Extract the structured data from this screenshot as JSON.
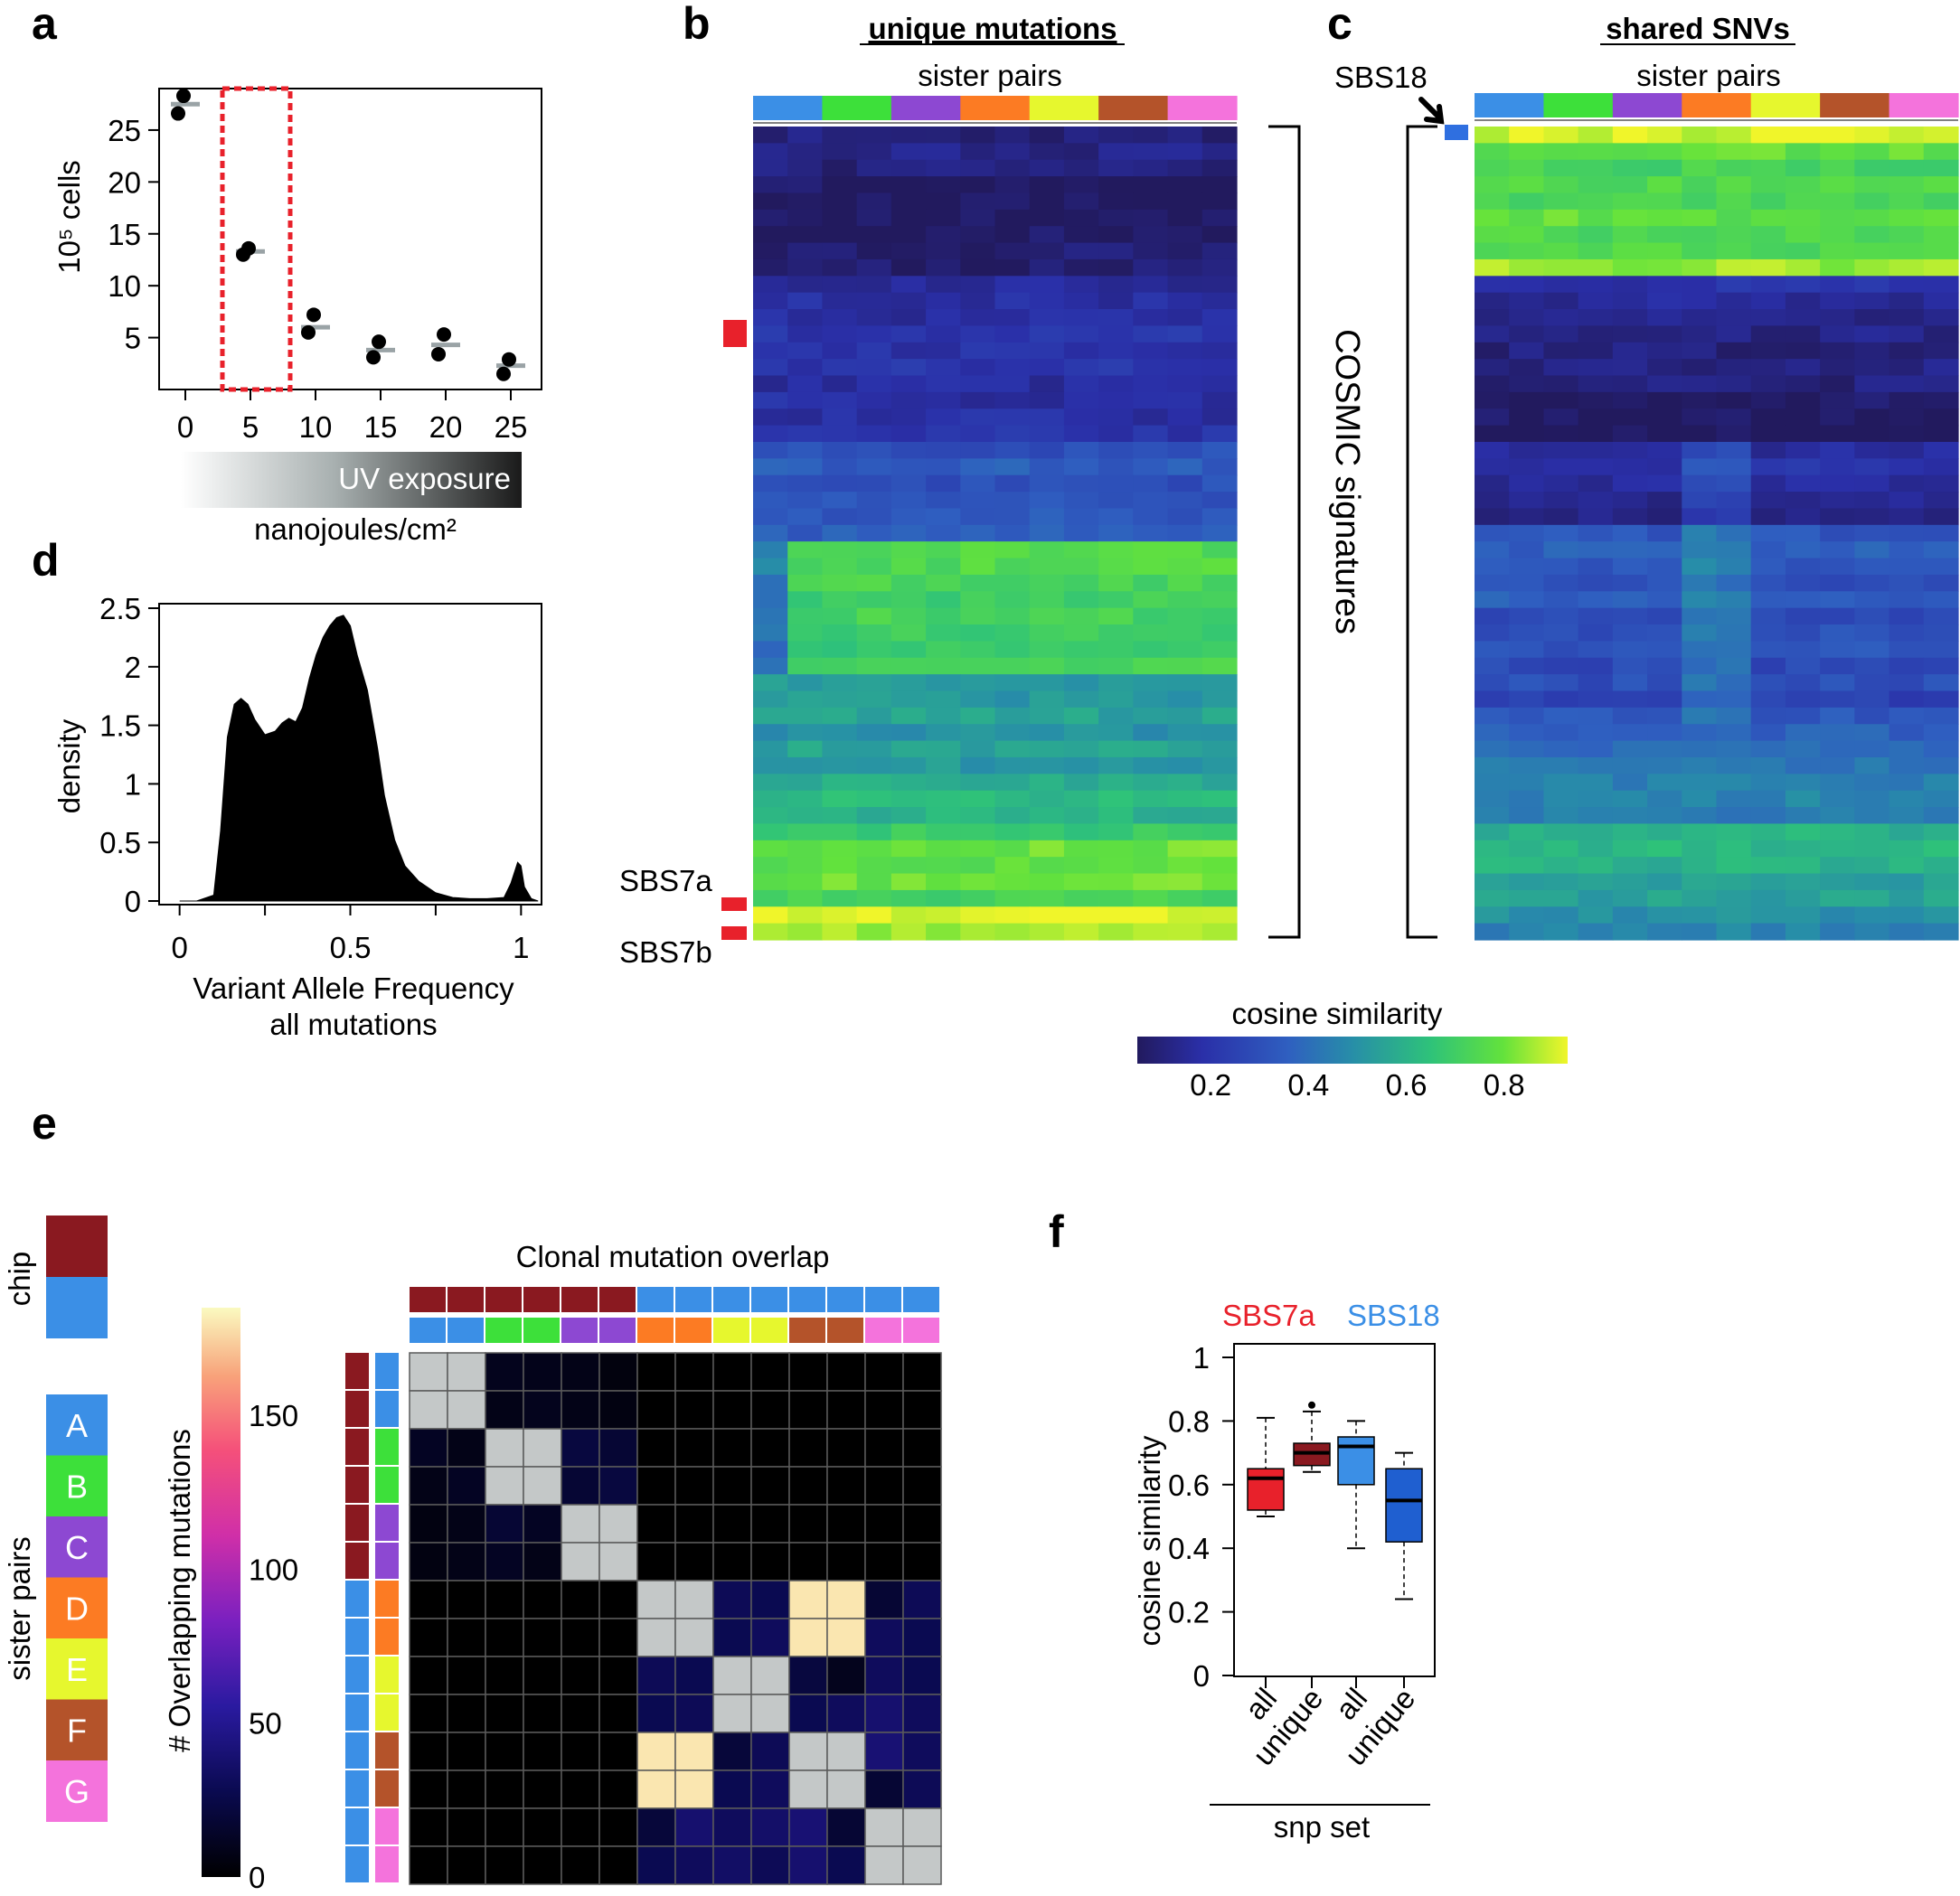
{
  "colors": {
    "pairs": [
      "#3b8fe6",
      "#3de03a",
      "#8d48d2",
      "#fc7b23",
      "#e6f72e",
      "#b4532a",
      "#f473dc"
    ],
    "chip": [
      "#8a1920",
      "#3b8fe6"
    ],
    "red_marker": "#e8212b",
    "blue_marker": "#2f6fe0",
    "sbs7a": "#e8212b",
    "sbs18": "#3b8fe6"
  },
  "panel_a": {
    "letter": "a",
    "ylabel": "10⁵ cells",
    "xticks": [
      "0",
      "5",
      "10",
      "15",
      "20",
      "25"
    ],
    "yticks": [
      "25",
      "20",
      "15",
      "10",
      "5"
    ],
    "gradient_label": "UV exposure",
    "xlabel": "nanojoules/cm²",
    "chart_data": {
      "type": "scatter",
      "x": [
        0,
        5,
        10,
        15,
        20,
        25
      ],
      "points": [
        [
          28.3,
          26.6
        ],
        [
          13.6,
          13.0
        ],
        [
          7.2,
          5.5
        ],
        [
          4.6,
          3.1
        ],
        [
          5.3,
          3.4
        ],
        [
          2.9,
          1.5
        ]
      ],
      "means": [
        27.5,
        13.3,
        6.0,
        3.8,
        4.3,
        2.3
      ],
      "ylim": [
        0,
        29
      ],
      "highlight_x": 5
    }
  },
  "panel_b": {
    "letter": "b",
    "title": "unique mutations",
    "subtitle": "sister pairs",
    "label_sbs7a": "SBS7a",
    "label_sbs7b": "SBS7b",
    "bracket_label": "COSMIC signatures",
    "chart_data": {
      "type": "heatmap",
      "rows": 49,
      "cols": 14,
      "row_profile": [
        0.1,
        0.12,
        0.1,
        0.06,
        0.05,
        0.05,
        0.07,
        0.09,
        0.08,
        0.16,
        0.18,
        0.17,
        0.2,
        0.19,
        0.2,
        0.17,
        0.18,
        0.18,
        0.2,
        0.3,
        0.35,
        0.3,
        0.32,
        0.33,
        0.35,
        0.75,
        0.75,
        0.73,
        0.7,
        0.72,
        0.7,
        0.68,
        0.72,
        0.52,
        0.52,
        0.55,
        0.5,
        0.55,
        0.52,
        0.58,
        0.62,
        0.6,
        0.68,
        0.8,
        0.78,
        0.8,
        0.72,
        0.92,
        0.85
      ]
    }
  },
  "panel_c": {
    "letter": "c",
    "title": "shared SNVs",
    "subtitle": "sister pairs",
    "label_sbs18": "SBS18",
    "chart_data": {
      "type": "heatmap",
      "rows": 49,
      "cols": 14,
      "row_profile": [
        0.9,
        0.78,
        0.72,
        0.75,
        0.73,
        0.78,
        0.74,
        0.75,
        0.85,
        0.2,
        0.15,
        0.12,
        0.12,
        0.1,
        0.12,
        0.1,
        0.06,
        0.06,
        0.05,
        0.16,
        0.2,
        0.16,
        0.14,
        0.12,
        0.32,
        0.35,
        0.33,
        0.3,
        0.35,
        0.28,
        0.3,
        0.32,
        0.28,
        0.3,
        0.25,
        0.33,
        0.36,
        0.38,
        0.42,
        0.44,
        0.46,
        0.44,
        0.6,
        0.62,
        0.6,
        0.55,
        0.55,
        0.5,
        0.46
      ]
    }
  },
  "colorbar_bc": {
    "label": "cosine similarity",
    "ticks": [
      "0.2",
      "0.4",
      "0.6",
      "0.8"
    ],
    "tick_values": [
      0.2,
      0.4,
      0.6,
      0.8
    ],
    "range": [
      0.05,
      0.93
    ]
  },
  "panel_d": {
    "letter": "d",
    "ylabel": "density",
    "xlabel1": "Variant Allele Frequency",
    "xlabel2": "all mutations",
    "xticks": [
      "0",
      "0.5",
      "1"
    ],
    "yticks": [
      "2.5",
      "2",
      "1.5",
      "1",
      "0.5",
      "0"
    ],
    "chart_data": {
      "type": "area",
      "x": [
        0.0,
        0.05,
        0.1,
        0.12,
        0.14,
        0.16,
        0.18,
        0.2,
        0.22,
        0.25,
        0.28,
        0.3,
        0.32,
        0.34,
        0.36,
        0.38,
        0.4,
        0.42,
        0.44,
        0.46,
        0.48,
        0.5,
        0.52,
        0.55,
        0.58,
        0.6,
        0.63,
        0.66,
        0.7,
        0.75,
        0.8,
        0.85,
        0.9,
        0.95,
        0.97,
        0.99,
        1.0,
        1.01,
        1.03,
        1.05
      ],
      "y": [
        0.0,
        0.0,
        0.05,
        0.6,
        1.4,
        1.68,
        1.73,
        1.68,
        1.55,
        1.42,
        1.45,
        1.52,
        1.56,
        1.53,
        1.65,
        1.9,
        2.1,
        2.25,
        2.35,
        2.42,
        2.44,
        2.35,
        2.1,
        1.8,
        1.3,
        0.9,
        0.52,
        0.3,
        0.17,
        0.07,
        0.03,
        0.02,
        0.02,
        0.03,
        0.15,
        0.33,
        0.3,
        0.12,
        0.02,
        0.0
      ],
      "xlim": [
        -0.06,
        1.06
      ],
      "ylim": [
        0,
        2.5
      ]
    }
  },
  "panel_e": {
    "letter": "e",
    "legend_chip": "chip",
    "legend_pairs": "sister pairs",
    "pair_letters": [
      "A",
      "B",
      "C",
      "D",
      "E",
      "F",
      "G"
    ],
    "title": "Clonal mutation overlap",
    "colorbar_label": "# Overlapping mutations",
    "colorbar_ticks": [
      "150",
      "100",
      "50",
      "0"
    ],
    "colorbar_tick_values": [
      150,
      100,
      50,
      0
    ],
    "colorbar_max": 185,
    "chart_data": {
      "type": "heatmap",
      "size": 14,
      "diagonal": "gray",
      "matrix": [
        [
          null,
          null,
          10,
          9,
          8,
          5,
          0,
          0,
          0,
          0,
          0,
          0,
          0,
          0
        ],
        [
          null,
          null,
          8,
          10,
          8,
          6,
          0,
          0,
          0,
          0,
          0,
          0,
          0,
          0
        ],
        [
          12,
          8,
          null,
          null,
          22,
          18,
          0,
          0,
          0,
          0,
          0,
          0,
          0,
          0
        ],
        [
          8,
          12,
          null,
          null,
          18,
          22,
          0,
          0,
          0,
          0,
          0,
          0,
          0,
          0
        ],
        [
          6,
          8,
          18,
          12,
          null,
          null,
          0,
          0,
          0,
          0,
          0,
          0,
          0,
          0
        ],
        [
          6,
          8,
          12,
          8,
          null,
          null,
          0,
          0,
          0,
          0,
          0,
          0,
          0,
          0
        ],
        [
          0,
          0,
          0,
          0,
          0,
          0,
          null,
          null,
          30,
          28,
          180,
          180,
          18,
          30
        ],
        [
          0,
          0,
          0,
          0,
          0,
          0,
          null,
          null,
          28,
          32,
          180,
          180,
          32,
          28
        ],
        [
          0,
          0,
          0,
          0,
          0,
          0,
          30,
          28,
          null,
          null,
          22,
          10,
          32,
          28
        ],
        [
          0,
          0,
          0,
          0,
          0,
          0,
          28,
          30,
          null,
          null,
          28,
          32,
          38,
          32
        ],
        [
          0,
          0,
          0,
          0,
          0,
          0,
          180,
          180,
          20,
          30,
          null,
          null,
          40,
          32
        ],
        [
          0,
          0,
          0,
          0,
          0,
          0,
          180,
          180,
          28,
          32,
          null,
          null,
          18,
          30
        ],
        [
          0,
          0,
          0,
          0,
          0,
          0,
          20,
          38,
          32,
          36,
          40,
          18,
          null,
          null
        ],
        [
          0,
          0,
          0,
          0,
          0,
          0,
          28,
          32,
          35,
          30,
          38,
          28,
          null,
          null
        ]
      ]
    }
  },
  "panel_f": {
    "letter": "f",
    "legend_sbs7a": "SBS7a",
    "legend_sbs18": "SBS18",
    "ylabel": "cosine similarity",
    "yticks": [
      "1",
      "0.8",
      "0.6",
      "0.4",
      "0.2",
      "0"
    ],
    "xticks": [
      "all",
      "unique",
      "all",
      "unique"
    ],
    "xlabel": "snp set",
    "chart_data": {
      "type": "box",
      "ylim": [
        0,
        1
      ],
      "boxes": [
        {
          "group": "SBS7a",
          "set": "all",
          "whisker_low": 0.5,
          "q1": 0.52,
          "median": 0.62,
          "q3": 0.65,
          "whisker_high": 0.81,
          "color": "#e8212b"
        },
        {
          "group": "SBS7a",
          "set": "unique",
          "whisker_low": 0.64,
          "q1": 0.66,
          "median": 0.7,
          "q3": 0.73,
          "whisker_high": 0.83,
          "outliers": [
            0.85
          ],
          "color": "#8a1920"
        },
        {
          "group": "SBS18",
          "set": "all",
          "whisker_low": 0.4,
          "q1": 0.6,
          "median": 0.72,
          "q3": 0.75,
          "whisker_high": 0.8,
          "color": "#3b8fe6"
        },
        {
          "group": "SBS18",
          "set": "unique",
          "whisker_low": 0.24,
          "q1": 0.42,
          "median": 0.55,
          "q3": 0.65,
          "whisker_high": 0.7,
          "color": "#1f5fd0"
        }
      ]
    }
  }
}
